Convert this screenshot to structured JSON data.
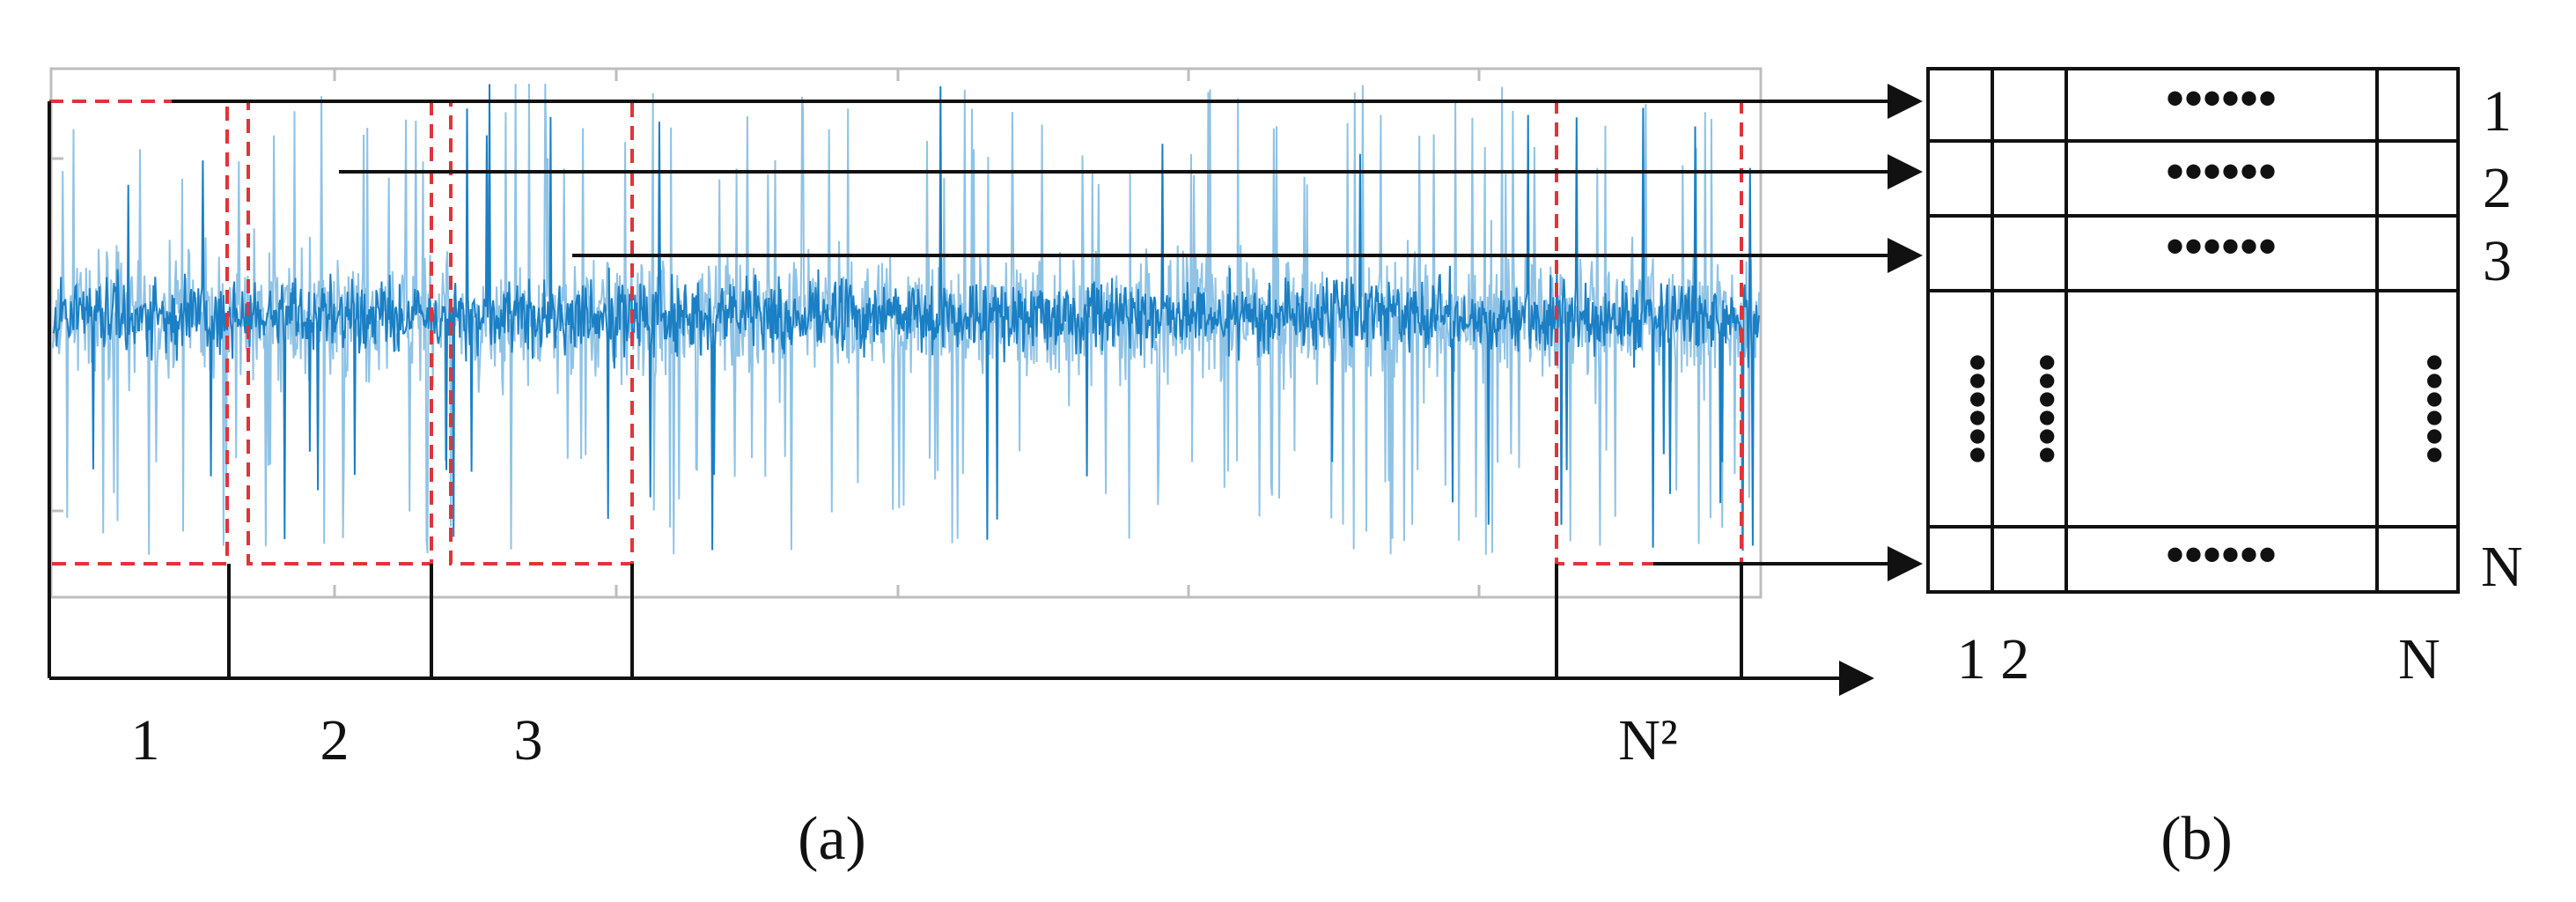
{
  "panel_a": {
    "segment_labels": [
      "1",
      "2",
      "3",
      "N²"
    ],
    "caption": "(a)"
  },
  "panel_b": {
    "row_labels": [
      "1",
      "2",
      "3",
      "N"
    ],
    "col_labels": [
      "1 2",
      "N"
    ],
    "caption": "(b)",
    "ellipsis": "••••••"
  },
  "colors": {
    "signal": "#1a7fc4",
    "signal_light": "#8fc3e6",
    "window_box": "#e0343a",
    "lines": "#111111",
    "frame": "#bdbdbd"
  }
}
